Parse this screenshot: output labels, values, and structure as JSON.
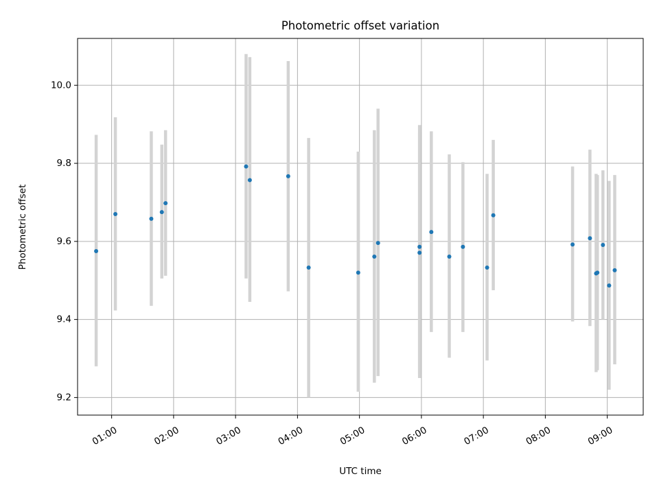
{
  "chart_data": {
    "type": "scatter",
    "title": "Photometric offset variation",
    "xlabel": "UTC time",
    "ylabel": "Photometric offset",
    "x_unit": "hours UTC",
    "xlim": [
      0.45,
      9.58
    ],
    "ylim": [
      9.155,
      10.12
    ],
    "x_ticks": [
      {
        "value": 1,
        "label": "01:00"
      },
      {
        "value": 2,
        "label": "02:00"
      },
      {
        "value": 3,
        "label": "03:00"
      },
      {
        "value": 4,
        "label": "04:00"
      },
      {
        "value": 5,
        "label": "05:00"
      },
      {
        "value": 6,
        "label": "06:00"
      },
      {
        "value": 7,
        "label": "07:00"
      },
      {
        "value": 8,
        "label": "08:00"
      },
      {
        "value": 9,
        "label": "09:00"
      }
    ],
    "y_ticks": [
      {
        "value": 9.2,
        "label": "9.2"
      },
      {
        "value": 9.4,
        "label": "9.4"
      },
      {
        "value": 9.6,
        "label": "9.6"
      },
      {
        "value": 9.8,
        "label": "9.8"
      },
      {
        "value": 10.0,
        "label": "10.0"
      }
    ],
    "grid": true,
    "marker_color": "#1f77b4",
    "errorbar_color": "#d3d3d3",
    "points": [
      {
        "x": 0.75,
        "y": 9.575,
        "low": 9.28,
        "high": 9.873
      },
      {
        "x": 1.06,
        "y": 9.67,
        "low": 9.423,
        "high": 9.918
      },
      {
        "x": 1.64,
        "y": 9.658,
        "low": 9.435,
        "high": 9.882
      },
      {
        "x": 1.81,
        "y": 9.675,
        "low": 9.505,
        "high": 9.848
      },
      {
        "x": 1.87,
        "y": 9.698,
        "low": 9.512,
        "high": 9.885
      },
      {
        "x": 3.17,
        "y": 9.792,
        "low": 9.505,
        "high": 10.08
      },
      {
        "x": 3.23,
        "y": 9.757,
        "low": 9.445,
        "high": 10.072
      },
      {
        "x": 3.85,
        "y": 9.767,
        "low": 9.472,
        "high": 10.062
      },
      {
        "x": 4.18,
        "y": 9.533,
        "low": 9.2,
        "high": 9.865
      },
      {
        "x": 4.98,
        "y": 9.52,
        "low": 9.215,
        "high": 9.83
      },
      {
        "x": 5.24,
        "y": 9.561,
        "low": 9.238,
        "high": 9.885
      },
      {
        "x": 5.3,
        "y": 9.596,
        "low": 9.255,
        "high": 9.94
      },
      {
        "x": 5.97,
        "y": 9.586,
        "low": 9.25,
        "high": 9.898
      },
      {
        "x": 5.97,
        "y": 9.571,
        "low": 9.26,
        "high": 9.878
      },
      {
        "x": 6.16,
        "y": 9.624,
        "low": 9.368,
        "high": 9.882
      },
      {
        "x": 6.45,
        "y": 9.561,
        "low": 9.302,
        "high": 9.823
      },
      {
        "x": 6.67,
        "y": 9.586,
        "low": 9.368,
        "high": 9.803
      },
      {
        "x": 7.06,
        "y": 9.533,
        "low": 9.295,
        "high": 9.773
      },
      {
        "x": 7.16,
        "y": 9.667,
        "low": 9.475,
        "high": 9.86
      },
      {
        "x": 8.44,
        "y": 9.592,
        "low": 9.395,
        "high": 9.792
      },
      {
        "x": 8.72,
        "y": 9.608,
        "low": 9.383,
        "high": 9.835
      },
      {
        "x": 8.82,
        "y": 9.518,
        "low": 9.265,
        "high": 9.773
      },
      {
        "x": 8.84,
        "y": 9.52,
        "low": 9.27,
        "high": 9.77
      },
      {
        "x": 8.93,
        "y": 9.591,
        "low": 9.4,
        "high": 9.782
      },
      {
        "x": 9.03,
        "y": 9.487,
        "low": 9.22,
        "high": 9.755
      },
      {
        "x": 9.12,
        "y": 9.526,
        "low": 9.285,
        "high": 9.77
      }
    ]
  }
}
